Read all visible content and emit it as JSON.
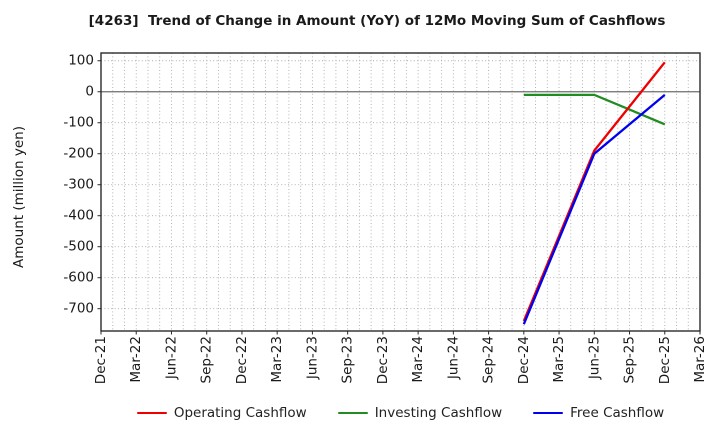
{
  "title": "[4263]  Trend of Change in Amount (YoY) of 12Mo Moving Sum of Cashflows",
  "ylabel": "Amount (million yen)",
  "colors": {
    "operating": "#ee0000",
    "investing": "#228b22",
    "free": "#0000ee",
    "grid": "#ababab",
    "zero_line": "#6e6e6e",
    "spine": "#2a2a2a",
    "tick_text": "#1a1a1a"
  },
  "chart_data": {
    "type": "line",
    "title": "[4263]  Trend of Change in Amount (YoY) of 12Mo Moving Sum of Cashflows",
    "xlabel": "",
    "ylabel": "Amount (million yen)",
    "x_tick_labels": [
      "Dec-21",
      "Mar-22",
      "Jun-22",
      "Sep-22",
      "Dec-22",
      "Mar-23",
      "Jun-23",
      "Sep-23",
      "Dec-23",
      "Mar-24",
      "Jun-24",
      "Sep-24",
      "Dec-24",
      "Mar-25",
      "Jun-25",
      "Sep-25",
      "Dec-25",
      "Mar-26"
    ],
    "months_per_tick": 3,
    "y_ticks": [
      100,
      0,
      -100,
      -200,
      -300,
      -400,
      -500,
      -600,
      -700
    ],
    "ylim": [
      -772,
      125
    ],
    "grid": "dotted, vertical line every month, horizontal line every 100",
    "zero_line": true,
    "legend_position": "bottom",
    "series": [
      {
        "name": "Operating Cashflow",
        "color": "#ee0000",
        "points": [
          {
            "x": "Dec-24",
            "y": -740
          },
          {
            "x": "Jun-25",
            "y": -190
          },
          {
            "x": "Dec-25",
            "y": 95
          }
        ]
      },
      {
        "name": "Investing Cashflow",
        "color": "#228b22",
        "points": [
          {
            "x": "Dec-24",
            "y": -10
          },
          {
            "x": "Jun-25",
            "y": -10
          },
          {
            "x": "Dec-25",
            "y": -105
          }
        ]
      },
      {
        "name": "Free Cashflow",
        "color": "#0000ee",
        "points": [
          {
            "x": "Dec-24",
            "y": -750
          },
          {
            "x": "Jun-25",
            "y": -200
          },
          {
            "x": "Dec-25",
            "y": -10
          }
        ]
      }
    ],
    "draw_order": [
      1,
      0,
      2
    ]
  }
}
